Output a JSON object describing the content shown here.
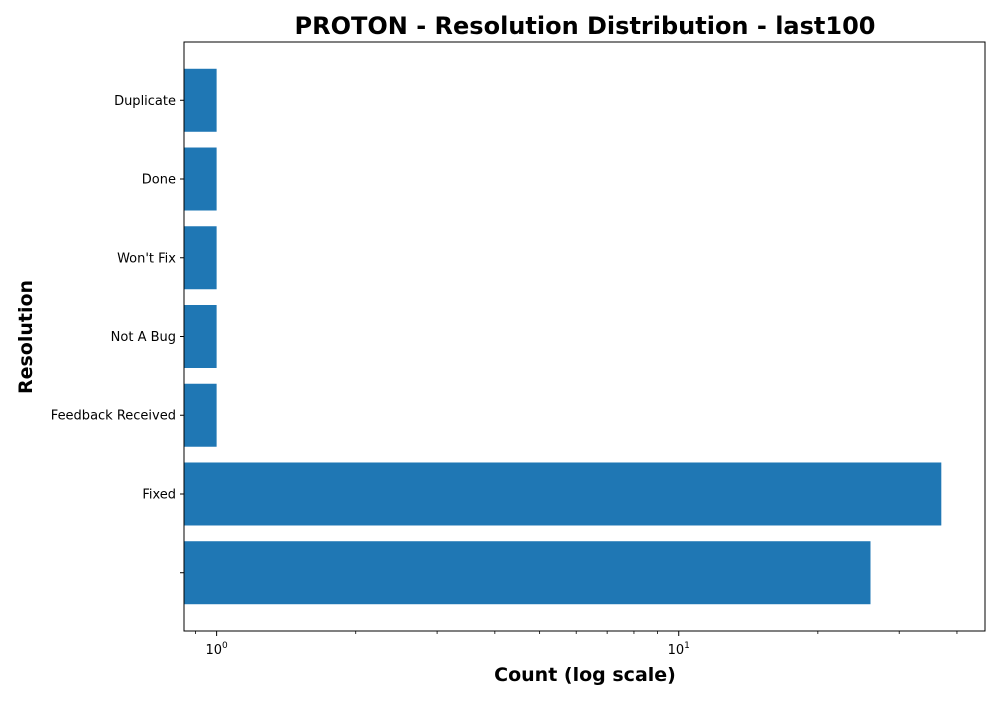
{
  "chart_data": {
    "type": "bar",
    "orientation": "horizontal",
    "title": "PROTON - Resolution Distribution - last100",
    "xlabel": "Count (log scale)",
    "ylabel": "Resolution",
    "x_scale": "log",
    "xlim": [
      0.85,
      46
    ],
    "x_ticks": [
      {
        "value": 1,
        "base": "10",
        "exponent": "0"
      },
      {
        "value": 10,
        "base": "10",
        "exponent": "1"
      }
    ],
    "categories": [
      "",
      "Fixed",
      "Feedback Received",
      "Not A Bug",
      "Won't Fix",
      "Done",
      "Duplicate"
    ],
    "values": [
      26,
      37,
      1,
      1,
      1,
      1,
      1
    ],
    "grid": false,
    "legend": "none",
    "colors": {
      "bar": "#1f77b4",
      "axes": "#000000",
      "background": "#ffffff"
    }
  }
}
